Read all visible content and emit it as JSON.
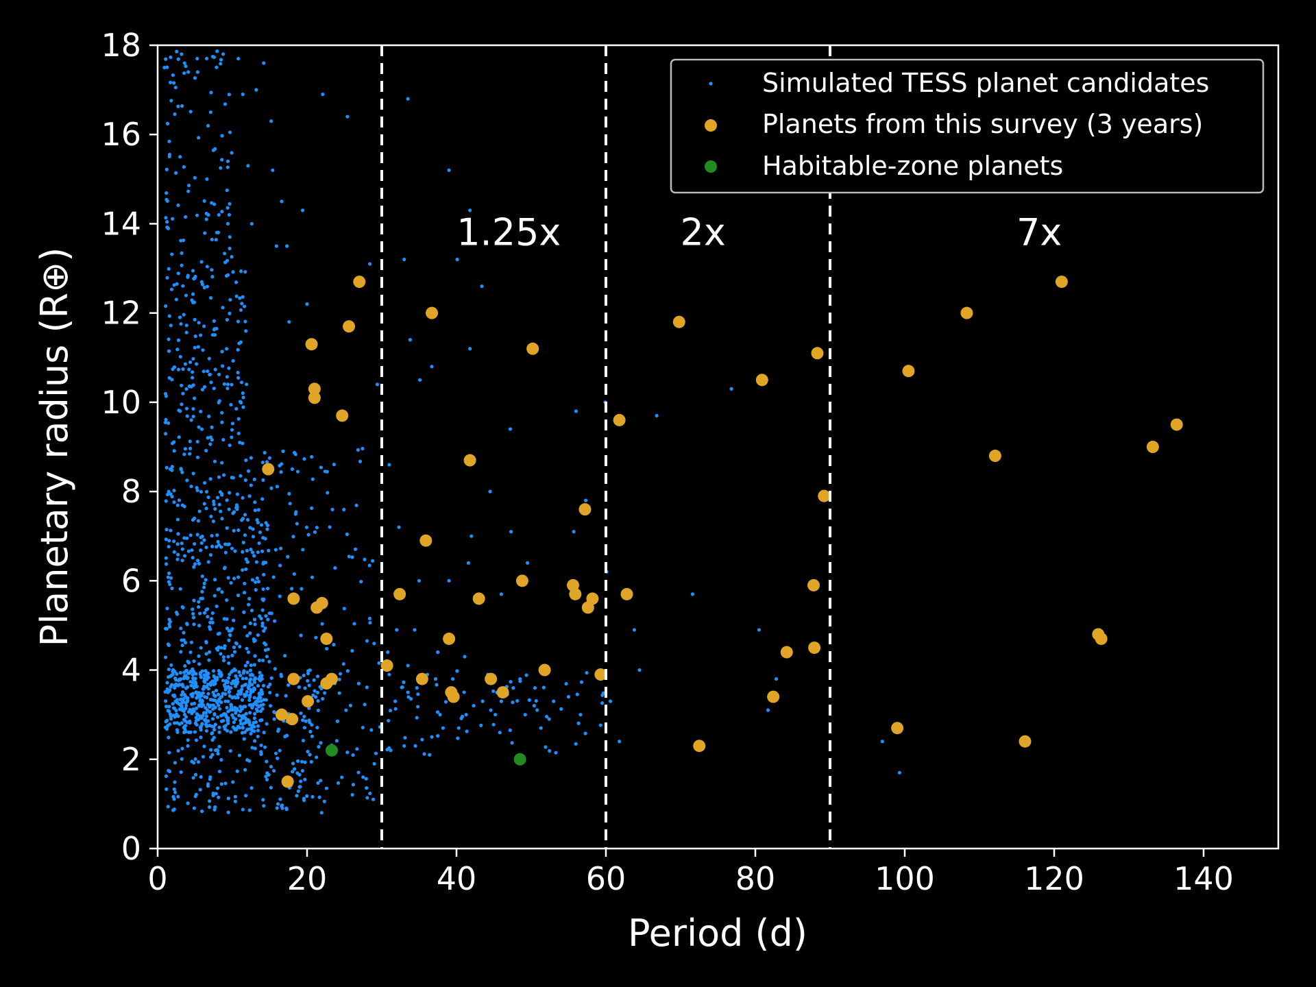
{
  "chart_data": {
    "type": "scatter",
    "xlabel": "Period (d)",
    "ylabel": "Planetary radius (R⊕)",
    "xlim": [
      0,
      150
    ],
    "ylim": [
      0,
      18
    ],
    "xticks": [
      0,
      20,
      40,
      60,
      80,
      100,
      120,
      140
    ],
    "yticks": [
      0,
      2,
      4,
      6,
      8,
      10,
      12,
      14,
      16,
      18
    ],
    "grid": false,
    "legend_position": "top-right",
    "vlines": [
      30,
      60,
      90
    ],
    "region_labels": [
      {
        "text": "1.25x",
        "x": 47,
        "y": 13.8
      },
      {
        "text": "2x",
        "x": 73,
        "y": 13.8
      },
      {
        "text": "7x",
        "x": 118,
        "y": 13.8
      }
    ],
    "colors": {
      "background": "#000000",
      "axes": "#ffffff",
      "tess": "#1e90ff",
      "survey": "#e0a526",
      "habitable": "#228b22"
    },
    "series": [
      {
        "name": "Simulated TESS planet candidates",
        "marker": "small-dot",
        "dense_clusters": [
          {
            "x_range": [
              1,
              14
            ],
            "y_range": [
              2.6,
              4.0
            ],
            "count": 420
          },
          {
            "x_range": [
              1,
              22
            ],
            "y_range": [
              0.8,
              4.0
            ],
            "count": 260
          },
          {
            "x_range": [
              1,
              15
            ],
            "y_range": [
              4.0,
              8.0
            ],
            "count": 300
          },
          {
            "x_range": [
              1,
              12
            ],
            "y_range": [
              8.0,
              13.0
            ],
            "count": 200
          },
          {
            "x_range": [
              1,
              10
            ],
            "y_range": [
              13.0,
              18.0
            ],
            "count": 90
          },
          {
            "x_range": [
              12,
              30
            ],
            "y_range": [
              1.0,
              9.0
            ],
            "count": 160
          },
          {
            "x_range": [
              30,
              60
            ],
            "y_range": [
              2.0,
              4.0
            ],
            "count": 60
          }
        ],
        "points": [
          [
            3.2,
            17.8
          ],
          [
            5.3,
            17.7
          ],
          [
            10.8,
            17.7
          ],
          [
            14.2,
            17.6
          ],
          [
            3.6,
            17.6
          ],
          [
            0.9,
            17.5
          ],
          [
            4.1,
            17.4
          ],
          [
            11.4,
            16.9
          ],
          [
            13.2,
            17.0
          ],
          [
            22.1,
            16.9
          ],
          [
            33.5,
            16.8
          ],
          [
            25.4,
            16.4
          ],
          [
            15.2,
            16.3
          ],
          [
            7.1,
            16.5
          ],
          [
            9.4,
            15.4
          ],
          [
            12.1,
            15.3
          ],
          [
            15.4,
            15.2
          ],
          [
            39.0,
            15.2
          ],
          [
            3.0,
            15.5
          ],
          [
            6.6,
            15.0
          ],
          [
            16.6,
            14.5
          ],
          [
            19.4,
            14.3
          ],
          [
            41.8,
            14.3
          ],
          [
            8.2,
            14.2
          ],
          [
            12.6,
            14.0
          ],
          [
            15.9,
            13.5
          ],
          [
            17.3,
            13.5
          ],
          [
            33.0,
            13.2
          ],
          [
            28.4,
            13.1
          ],
          [
            43.4,
            12.6
          ],
          [
            40.1,
            13.2
          ],
          [
            20.0,
            12.2
          ],
          [
            17.6,
            11.8
          ],
          [
            33.8,
            11.4
          ],
          [
            41.8,
            11.2
          ],
          [
            36.7,
            10.8
          ],
          [
            35.1,
            10.5
          ],
          [
            29.4,
            10.4
          ],
          [
            47.2,
            9.4
          ],
          [
            56.0,
            9.8
          ],
          [
            59.9,
            10.0
          ],
          [
            66.8,
            9.7
          ],
          [
            76.8,
            10.3
          ],
          [
            44.5,
            8.0
          ],
          [
            42.0,
            7.0
          ],
          [
            41.6,
            6.4
          ],
          [
            39.0,
            6.0
          ],
          [
            35.0,
            6.0
          ],
          [
            32.3,
            7.2
          ],
          [
            31.0,
            8.6
          ],
          [
            47.3,
            7.1
          ],
          [
            49.5,
            6.4
          ],
          [
            60.1,
            6.2
          ],
          [
            46.0,
            5.7
          ],
          [
            32.0,
            4.9
          ],
          [
            32.6,
            5.7
          ],
          [
            55.7,
            7.1
          ],
          [
            57.3,
            7.8
          ],
          [
            71.6,
            5.7
          ],
          [
            63.8,
            4.9
          ],
          [
            64.5,
            4.0
          ],
          [
            80.5,
            4.9
          ],
          [
            82.8,
            3.8
          ],
          [
            81.7,
            3.1
          ],
          [
            60.6,
            3.3
          ],
          [
            61.8,
            2.4
          ],
          [
            52.4,
            2.9
          ],
          [
            51.3,
            2.7
          ],
          [
            50.4,
            3.2
          ],
          [
            49.2,
            3.0
          ],
          [
            45.2,
            3.0
          ],
          [
            43.5,
            3.3
          ],
          [
            41.3,
            3.0
          ],
          [
            40.3,
            2.7
          ],
          [
            38.2,
            2.7
          ],
          [
            36.7,
            2.5
          ],
          [
            36.4,
            2.1
          ],
          [
            34.5,
            2.3
          ],
          [
            33.0,
            2.3
          ],
          [
            31.2,
            2.2
          ],
          [
            29.0,
            1.9
          ],
          [
            27.5,
            1.6
          ],
          [
            97.0,
            2.4
          ],
          [
            99.3,
            1.7
          ],
          [
            53.0,
            3.3
          ],
          [
            47.6,
            3.6
          ],
          [
            46.0,
            3.3
          ],
          [
            44.2,
            3.9
          ],
          [
            41.1,
            4.3
          ],
          [
            39.6,
            3.5
          ],
          [
            37.2,
            3.8
          ],
          [
            36.1,
            3.9
          ],
          [
            34.7,
            3.6
          ],
          [
            33.5,
            3.5
          ],
          [
            31.8,
            3.3
          ],
          [
            31.0,
            3.9
          ],
          [
            30.8,
            4.4
          ],
          [
            33.5,
            4.1
          ],
          [
            34.4,
            4.9
          ],
          [
            37.5,
            4.4
          ],
          [
            42.3,
            3.2
          ],
          [
            37.8,
            3.0
          ],
          [
            39.5,
            3.8
          ],
          [
            44.6,
            3.1
          ],
          [
            45.8,
            2.6
          ],
          [
            48.5,
            3.8
          ],
          [
            50.5,
            3.6
          ],
          [
            55.0,
            3.4
          ],
          [
            56.6,
            3.0
          ]
        ]
      },
      {
        "name": "Planets from this survey (3 years)",
        "marker": "circle",
        "points": [
          [
            14.8,
            8.5
          ],
          [
            16.6,
            3.0
          ],
          [
            17.4,
            1.5
          ],
          [
            18.0,
            2.9
          ],
          [
            18.2,
            3.8
          ],
          [
            18.2,
            5.6
          ],
          [
            20.1,
            3.3
          ],
          [
            20.6,
            11.3
          ],
          [
            21.0,
            10.3
          ],
          [
            21.0,
            10.1
          ],
          [
            21.3,
            5.4
          ],
          [
            22.0,
            5.5
          ],
          [
            22.6,
            3.7
          ],
          [
            22.6,
            4.7
          ],
          [
            23.3,
            3.8
          ],
          [
            24.7,
            9.7
          ],
          [
            25.6,
            11.7
          ],
          [
            27.0,
            12.7
          ],
          [
            30.7,
            4.1
          ],
          [
            32.4,
            5.7
          ],
          [
            35.4,
            3.8
          ],
          [
            35.9,
            6.9
          ],
          [
            36.7,
            12.0
          ],
          [
            39.0,
            4.7
          ],
          [
            39.3,
            3.5
          ],
          [
            39.6,
            3.4
          ],
          [
            41.8,
            8.7
          ],
          [
            43.0,
            5.6
          ],
          [
            44.6,
            3.8
          ],
          [
            46.2,
            3.5
          ],
          [
            48.8,
            6.0
          ],
          [
            50.2,
            11.2
          ],
          [
            51.8,
            4.0
          ],
          [
            55.6,
            5.9
          ],
          [
            55.9,
            5.7
          ],
          [
            57.2,
            7.6
          ],
          [
            57.6,
            5.4
          ],
          [
            58.2,
            5.6
          ],
          [
            59.3,
            3.9
          ],
          [
            61.8,
            9.6
          ],
          [
            62.8,
            5.7
          ],
          [
            69.8,
            11.8
          ],
          [
            72.5,
            2.3
          ],
          [
            80.9,
            10.5
          ],
          [
            82.4,
            3.4
          ],
          [
            84.2,
            4.4
          ],
          [
            87.8,
            5.9
          ],
          [
            87.9,
            4.5
          ],
          [
            88.3,
            11.1
          ],
          [
            89.2,
            7.9
          ],
          [
            99.0,
            2.7
          ],
          [
            100.5,
            10.7
          ],
          [
            108.3,
            12.0
          ],
          [
            112.1,
            8.8
          ],
          [
            116.1,
            2.4
          ],
          [
            121.0,
            12.7
          ],
          [
            125.9,
            4.8
          ],
          [
            126.3,
            4.7
          ],
          [
            133.2,
            9.0
          ],
          [
            136.4,
            9.5
          ]
        ]
      },
      {
        "name": "Habitable-zone planets",
        "marker": "circle",
        "points": [
          [
            23.3,
            2.2
          ],
          [
            48.5,
            2.0
          ]
        ]
      }
    ]
  }
}
